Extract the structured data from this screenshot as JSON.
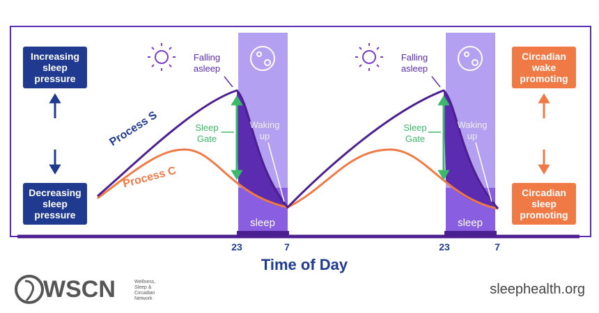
{
  "left_labels": {
    "top": "Increasing sleep pressure",
    "bottom": "Decreasing sleep pressure"
  },
  "right_labels": {
    "top": "Circadian wake promoting",
    "bottom": "Circadian sleep promoting"
  },
  "curves": {
    "process_s": "Process S",
    "process_c": "Process C"
  },
  "cycles": [
    {
      "falling_asleep": "Falling asleep",
      "sleep_gate": "Sleep Gate",
      "waking_up": "Waking up",
      "sleep": "sleep",
      "start": "23",
      "end": "7"
    },
    {
      "falling_asleep": "Falling asleep",
      "sleep_gate": "Sleep Gate",
      "waking_up": "Waking up",
      "sleep": "sleep",
      "start": "23",
      "end": "7"
    }
  ],
  "x_axis_title": "Time of Day",
  "footer": {
    "logo": "WSCN",
    "logo_subtitle": "Wellness, Sleep & Circadian Network",
    "url": "sleephealth.org"
  }
}
